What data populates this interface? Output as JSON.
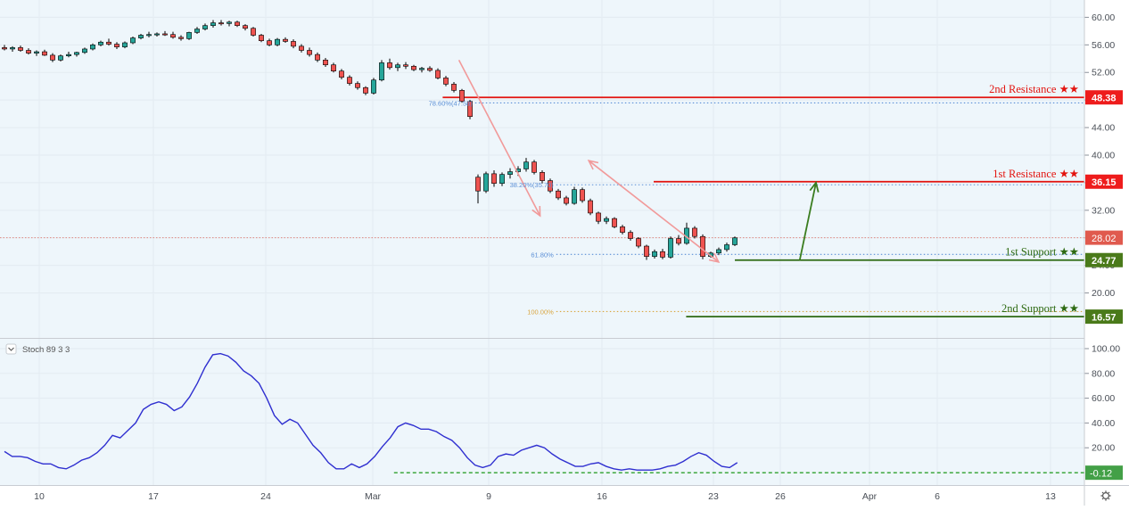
{
  "chart_data": {
    "type": "candlestick",
    "colors": {
      "up": "#26a69a",
      "down": "#ef5350",
      "resistance": "#e3140f",
      "support": "#2d6a12",
      "support_label_bg": "#4a7a1a",
      "fib_blue": "#5b8fd6",
      "fib_orange": "#d9a640",
      "projection_arrow": "#3a7d1f",
      "swing_arrow": "#f19a9a",
      "stoch_line": "#2f2fd0",
      "stoch_zero_line": "#2ca02c",
      "current_price_bg": "#e05a4e"
    },
    "price_axis": {
      "ticks": [
        "60.00",
        "56.00",
        "52.00",
        "48.00",
        "44.00",
        "40.00",
        "36.00",
        "32.00",
        "28.00",
        "24.00",
        "20.00"
      ],
      "range": [
        15,
        61
      ]
    },
    "stoch_axis": {
      "ticks": [
        "100.00",
        "80.00",
        "60.00",
        "40.00",
        "20.00"
      ],
      "range": [
        -6,
        108
      ]
    },
    "x_axis": {
      "labels": [
        "10",
        "17",
        "24",
        "Mar",
        "9",
        "16",
        "23",
        "26",
        "Apr",
        "6",
        "13"
      ]
    },
    "levels": [
      {
        "label": "2nd Resistance ★★",
        "value": "48.38",
        "price": 48.38,
        "kind": "resistance",
        "start": "2020-03-02"
      },
      {
        "label": "1st Resistance ★★",
        "value": "36.15",
        "price": 36.15,
        "kind": "resistance",
        "start": "2020-03-15"
      },
      {
        "label": "1st Support ★★",
        "value": "24.77",
        "price": 24.77,
        "kind": "support",
        "start": "2020-03-20"
      },
      {
        "label": "2nd Support ★★",
        "value": "16.57",
        "price": 16.57,
        "kind": "support",
        "start": "2020-03-17"
      }
    ],
    "fib_levels": [
      {
        "label": "78.60%(47.58)",
        "price": 47.58,
        "color": "blue",
        "start": "2020-03-04"
      },
      {
        "label": "38.20%(35.70)",
        "price": 35.7,
        "color": "blue",
        "start": "2020-03-09"
      },
      {
        "label": "61.80%",
        "price": 25.6,
        "color": "blue",
        "start": "2020-03-09"
      },
      {
        "label": "100.00%",
        "price": 17.3,
        "color": "orange",
        "start": "2020-03-09"
      }
    ],
    "current_price": {
      "value": "28.02",
      "price": 28.02
    },
    "stoch": {
      "label": "Stoch 89 3 3",
      "last_value": "-0.12",
      "last": -0.12,
      "points": [
        [
          1,
          17
        ],
        [
          2,
          13
        ],
        [
          3,
          13
        ],
        [
          4,
          12
        ],
        [
          5,
          9
        ],
        [
          6,
          7
        ],
        [
          7,
          7
        ],
        [
          8,
          4
        ],
        [
          9,
          3
        ],
        [
          10,
          6
        ],
        [
          11,
          10
        ],
        [
          12,
          12
        ],
        [
          13,
          16
        ],
        [
          14,
          22
        ],
        [
          15,
          30
        ],
        [
          16,
          28
        ],
        [
          17,
          34
        ],
        [
          18,
          40
        ],
        [
          19,
          51
        ],
        [
          20,
          55
        ],
        [
          21,
          57
        ],
        [
          22,
          55
        ],
        [
          23,
          50
        ],
        [
          24,
          53
        ],
        [
          25,
          61
        ],
        [
          26,
          72
        ],
        [
          27,
          85
        ],
        [
          28,
          95
        ],
        [
          29,
          96
        ],
        [
          30,
          94
        ],
        [
          31,
          89
        ],
        [
          32,
          82
        ],
        [
          33,
          78
        ],
        [
          34,
          72
        ],
        [
          35,
          60
        ],
        [
          36,
          46
        ],
        [
          37,
          39
        ],
        [
          38,
          43
        ],
        [
          39,
          40
        ],
        [
          40,
          31
        ],
        [
          41,
          22
        ],
        [
          42,
          16
        ],
        [
          43,
          8
        ],
        [
          44,
          3
        ],
        [
          45,
          3
        ],
        [
          46,
          7
        ],
        [
          47,
          4
        ],
        [
          48,
          7
        ],
        [
          49,
          13
        ],
        [
          50,
          21
        ],
        [
          51,
          28
        ],
        [
          52,
          37
        ],
        [
          53,
          40
        ],
        [
          54,
          38
        ],
        [
          55,
          35
        ],
        [
          56,
          35
        ],
        [
          57,
          33
        ],
        [
          58,
          29
        ],
        [
          59,
          26
        ],
        [
          60,
          20
        ],
        [
          61,
          12
        ],
        [
          62,
          6
        ],
        [
          63,
          4
        ],
        [
          64,
          6
        ],
        [
          65,
          13
        ],
        [
          66,
          15
        ],
        [
          67,
          14
        ],
        [
          68,
          18
        ],
        [
          69,
          20
        ],
        [
          70,
          22
        ],
        [
          71,
          20
        ],
        [
          72,
          15
        ],
        [
          73,
          11
        ],
        [
          74,
          8
        ],
        [
          75,
          5
        ],
        [
          76,
          5
        ],
        [
          77,
          7
        ],
        [
          78,
          8
        ],
        [
          79,
          5
        ],
        [
          80,
          3
        ],
        [
          81,
          2
        ],
        [
          82,
          3
        ],
        [
          83,
          2
        ],
        [
          84,
          2
        ],
        [
          85,
          2
        ],
        [
          86,
          3
        ],
        [
          87,
          5
        ],
        [
          88,
          6
        ],
        [
          89,
          9
        ],
        [
          90,
          13
        ],
        [
          91,
          16
        ],
        [
          92,
          14
        ],
        [
          93,
          9
        ],
        [
          94,
          5
        ],
        [
          95,
          4
        ],
        [
          96,
          8
        ]
      ]
    },
    "candles": [
      [
        1,
        55.6,
        56.0,
        55.2,
        55.4
      ],
      [
        2,
        55.4,
        55.8,
        55.0,
        55.6
      ],
      [
        3,
        55.6,
        55.9,
        55.0,
        55.2
      ],
      [
        4,
        55.2,
        55.5,
        54.6,
        54.8
      ],
      [
        5,
        54.8,
        55.2,
        54.4,
        55.0
      ],
      [
        6,
        55.0,
        55.3,
        54.4,
        54.5
      ],
      [
        7,
        54.5,
        54.8,
        53.5,
        53.8
      ],
      [
        8,
        53.8,
        54.6,
        53.6,
        54.4
      ],
      [
        9,
        54.4,
        55.0,
        54.2,
        54.6
      ],
      [
        10,
        54.6,
        55.0,
        54.3,
        54.9
      ],
      [
        11,
        54.9,
        55.6,
        54.7,
        55.4
      ],
      [
        12,
        55.4,
        56.2,
        55.2,
        56.0
      ],
      [
        13,
        56.0,
        56.6,
        55.8,
        56.4
      ],
      [
        14,
        56.4,
        56.9,
        55.9,
        56.1
      ],
      [
        15,
        56.1,
        56.4,
        55.4,
        55.7
      ],
      [
        16,
        55.7,
        56.5,
        55.5,
        56.3
      ],
      [
        17,
        56.3,
        57.2,
        56.1,
        57.0
      ],
      [
        18,
        57.0,
        57.6,
        56.8,
        57.4
      ],
      [
        19,
        57.4,
        57.9,
        57.1,
        57.5
      ],
      [
        20,
        57.5,
        57.8,
        57.2,
        57.6
      ],
      [
        21,
        57.6,
        58.0,
        57.3,
        57.5
      ],
      [
        22,
        57.5,
        57.9,
        56.9,
        57.1
      ],
      [
        23,
        57.1,
        57.4,
        56.6,
        56.9
      ],
      [
        24,
        56.9,
        57.9,
        56.7,
        57.8
      ],
      [
        25,
        57.8,
        58.6,
        57.6,
        58.3
      ],
      [
        26,
        58.3,
        59.1,
        58.1,
        58.8
      ],
      [
        27,
        58.8,
        59.6,
        58.5,
        59.2
      ],
      [
        28,
        59.2,
        59.6,
        58.8,
        59.1
      ],
      [
        29,
        59.1,
        59.5,
        58.7,
        59.3
      ],
      [
        30,
        59.3,
        59.5,
        58.6,
        58.8
      ],
      [
        31,
        58.8,
        59.0,
        58.1,
        58.4
      ],
      [
        32,
        58.4,
        58.6,
        57.2,
        57.4
      ],
      [
        33,
        57.4,
        57.6,
        56.4,
        56.6
      ],
      [
        34,
        56.6,
        56.9,
        55.8,
        56.0
      ],
      [
        35,
        56.0,
        57.0,
        55.8,
        56.8
      ],
      [
        36,
        56.8,
        57.1,
        56.3,
        56.5
      ],
      [
        37,
        56.5,
        56.8,
        55.5,
        55.8
      ],
      [
        38,
        55.8,
        56.1,
        54.9,
        55.2
      ],
      [
        39,
        55.2,
        55.6,
        54.3,
        54.6
      ],
      [
        40,
        54.6,
        54.9,
        53.5,
        53.8
      ],
      [
        41,
        53.8,
        54.1,
        52.8,
        53.1
      ],
      [
        42,
        53.1,
        53.4,
        52.0,
        52.2
      ],
      [
        43,
        52.2,
        52.5,
        51.0,
        51.3
      ],
      [
        44,
        51.3,
        51.6,
        50.1,
        50.4
      ],
      [
        45,
        50.4,
        50.7,
        49.5,
        49.8
      ],
      [
        46,
        49.8,
        50.0,
        48.7,
        49.0
      ],
      [
        47,
        49.0,
        51.2,
        48.8,
        50.9
      ],
      [
        48,
        50.9,
        53.8,
        50.7,
        53.4
      ],
      [
        49,
        53.4,
        54.0,
        52.4,
        52.7
      ],
      [
        50,
        52.7,
        53.4,
        52.2,
        53.1
      ],
      [
        51,
        53.1,
        53.5,
        52.5,
        52.9
      ],
      [
        52,
        52.9,
        53.1,
        52.2,
        52.4
      ],
      [
        53,
        52.4,
        52.8,
        52.0,
        52.6
      ],
      [
        54,
        52.6,
        52.9,
        52.1,
        52.3
      ],
      [
        55,
        52.3,
        52.6,
        51.0,
        51.2
      ],
      [
        56,
        51.2,
        51.5,
        50.0,
        50.3
      ],
      [
        57,
        50.3,
        50.6,
        49.1,
        49.4
      ],
      [
        58,
        49.4,
        49.6,
        47.6,
        47.8
      ],
      [
        59,
        47.8,
        48.0,
        45.2,
        45.6
      ],
      [
        60,
        36.8,
        37.2,
        33.0,
        34.8
      ],
      [
        61,
        34.8,
        37.6,
        34.5,
        37.3
      ],
      [
        62,
        37.3,
        37.8,
        35.4,
        35.9
      ],
      [
        63,
        35.9,
        37.5,
        35.5,
        37.2
      ],
      [
        64,
        37.2,
        38.1,
        36.6,
        37.6
      ],
      [
        65,
        37.6,
        38.4,
        37.0,
        38.0
      ],
      [
        66,
        38.0,
        39.6,
        37.6,
        39.0
      ],
      [
        67,
        39.0,
        39.3,
        37.2,
        37.5
      ],
      [
        68,
        37.5,
        37.8,
        35.9,
        36.3
      ],
      [
        69,
        36.3,
        36.6,
        34.5,
        34.8
      ],
      [
        70,
        34.8,
        35.1,
        33.5,
        33.8
      ],
      [
        71,
        33.8,
        34.1,
        32.7,
        33.0
      ],
      [
        72,
        33.0,
        35.4,
        32.8,
        35.0
      ],
      [
        73,
        35.0,
        35.3,
        33.1,
        33.4
      ],
      [
        74,
        33.4,
        33.7,
        31.3,
        31.6
      ],
      [
        75,
        31.6,
        31.8,
        30.0,
        30.4
      ],
      [
        76,
        30.4,
        31.1,
        30.0,
        30.8
      ],
      [
        77,
        30.8,
        31.0,
        29.4,
        29.6
      ],
      [
        78,
        29.6,
        29.9,
        28.5,
        28.8
      ],
      [
        79,
        28.8,
        29.1,
        27.6,
        27.9
      ],
      [
        80,
        27.9,
        28.1,
        26.5,
        26.8
      ],
      [
        81,
        26.8,
        27.0,
        24.8,
        25.3
      ],
      [
        82,
        25.3,
        26.3,
        25.0,
        26.0
      ],
      [
        83,
        26.0,
        26.4,
        24.9,
        25.2
      ],
      [
        84,
        25.2,
        28.2,
        25.0,
        27.9
      ],
      [
        85,
        27.9,
        28.4,
        26.9,
        27.2
      ],
      [
        86,
        27.2,
        30.2,
        27.0,
        29.4
      ],
      [
        87,
        29.4,
        29.7,
        27.9,
        28.2
      ],
      [
        88,
        28.2,
        28.5,
        24.9,
        25.3
      ],
      [
        89,
        25.3,
        26.0,
        25.1,
        25.8
      ],
      [
        90,
        25.8,
        26.6,
        25.5,
        26.3
      ],
      [
        91,
        26.3,
        27.3,
        26.0,
        27.0
      ],
      [
        92,
        27.0,
        28.2,
        26.8,
        28.0
      ]
    ],
    "swing_arrows": [
      {
        "from": [
          "2020-03-03",
          53.8
        ],
        "to": [
          "2020-03-08",
          31.2
        ]
      },
      {
        "from": [
          "2020-03-11",
          39.2
        ],
        "to": [
          "2020-03-19",
          24.5
        ]
      }
    ],
    "projection_arrow": {
      "from": [
        "2020-03-24",
        24.77
      ],
      "to": [
        "2020-03-25",
        36.0
      ]
    }
  }
}
